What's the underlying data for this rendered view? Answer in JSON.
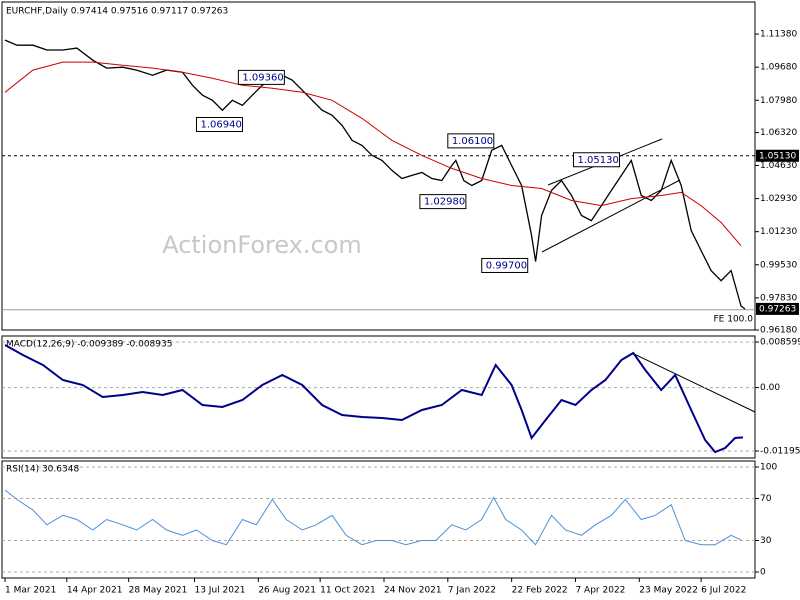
{
  "chart_data": [
    {
      "type": "line",
      "title": "EURCHF,Daily  0.97414 0.97516 0.97117 0.97263",
      "watermark": "ActionForex.com",
      "xlim": [
        -1.5,
        376
      ],
      "ylim": [
        0.9618,
        1.1313
      ],
      "yticks": [
        {
          "value": 1.1138,
          "label": "1.11380"
        },
        {
          "value": 1.0968,
          "label": "1.09680"
        },
        {
          "value": 1.0798,
          "label": "1.07980"
        },
        {
          "value": 1.0632,
          "label": "1.06320"
        },
        {
          "value": 1.0463,
          "label": "1.04630"
        },
        {
          "value": 1.0293,
          "label": "1.02930"
        },
        {
          "value": 1.0123,
          "label": "1.01230"
        },
        {
          "value": 0.9953,
          "label": "0.99530"
        },
        {
          "value": 0.9783,
          "label": "0.97830"
        },
        {
          "value": 0.9618,
          "label": "0.96180"
        }
      ],
      "grid": false,
      "series": [
        {
          "color": "#000000",
          "x": [
            0,
            6,
            14,
            21,
            29,
            36,
            44,
            51,
            59,
            66,
            74,
            81,
            89,
            94,
            99,
            104,
            109,
            114,
            119,
            124,
            129,
            134,
            139,
            144,
            149,
            154,
            159,
            164,
            169,
            174,
            179,
            184,
            189,
            194,
            199,
            204,
            209,
            214,
            219,
            224,
            226,
            230,
            234,
            239,
            244,
            249,
            254,
            259,
            264,
            266,
            269,
            274,
            279,
            284,
            289,
            294,
            299,
            304,
            309,
            314,
            319,
            324,
            329,
            334,
            339,
            344,
            349,
            354,
            359,
            364,
            369,
            371
          ],
          "values": [
            1.1107,
            1.1081,
            1.1081,
            1.1056,
            1.1056,
            1.1066,
            1.1004,
            1.0963,
            1.0968,
            1.0953,
            1.0927,
            1.0953,
            1.0942,
            1.0875,
            1.0824,
            1.0798,
            1.0747,
            1.0798,
            1.0772,
            1.0824,
            1.0875,
            1.0911,
            1.0927,
            1.0901,
            1.085,
            1.0798,
            1.0747,
            1.0721,
            1.0669,
            1.0592,
            1.0566,
            1.0515,
            1.0489,
            1.0438,
            1.0396,
            1.0412,
            1.0427,
            1.0396,
            1.0386,
            1.0463,
            1.0489,
            1.0386,
            1.036,
            1.0386,
            1.0541,
            1.0566,
            1.0463,
            1.036,
            1.0103,
            0.997,
            1.0206,
            1.0335,
            1.0386,
            1.0309,
            1.0206,
            1.018,
            1.0257,
            1.0335,
            1.0412,
            1.0489,
            1.0309,
            1.0283,
            1.0335,
            1.0489,
            1.036,
            1.0129,
            1.0026,
            0.9923,
            0.9871,
            0.9923,
            0.9742,
            0.9726
          ]
        },
        {
          "color": "#cc0000",
          "x": [
            0,
            14,
            29,
            44,
            59,
            74,
            89,
            104,
            119,
            134,
            149,
            164,
            179,
            194,
            209,
            224,
            239,
            254,
            269,
            284,
            299,
            314,
            329,
            339,
            349,
            359,
            369
          ],
          "values": [
            1.0839,
            1.0953,
            1.0994,
            1.0994,
            1.0978,
            1.0963,
            1.0942,
            1.0911,
            1.0875,
            1.086,
            1.0839,
            1.0798,
            1.0705,
            1.0592,
            1.0515,
            1.0448,
            1.0396,
            1.036,
            1.0345,
            1.0283,
            1.0257,
            1.0293,
            1.0309,
            1.0325,
            1.0257,
            1.017,
            1.0051
          ]
        }
      ],
      "annotations": [
        {
          "label": "1.09360",
          "value": 1.0936,
          "x": 117
        },
        {
          "label": "1.06940",
          "value": 1.0694,
          "x": 96
        },
        {
          "label": "1.06100",
          "value": 1.061,
          "x": 222
        },
        {
          "label": "1.05130",
          "value": 1.0513,
          "x": 285
        },
        {
          "label": "1.02980",
          "value": 1.0298,
          "x": 208
        },
        {
          "label": "0.99700",
          "value": 0.997,
          "x": 239
        }
      ],
      "level": {
        "value": 1.0513,
        "label": "1.05130"
      },
      "last_price": {
        "value": 0.97263,
        "label": "0.97263"
      },
      "fe_level": {
        "value": 0.9722,
        "label": "FE 100.0"
      }
    },
    {
      "type": "line",
      "title": "MACD(12,26,9) -0.009389 -0.008935",
      "xlim": [
        -1.5,
        376
      ],
      "ylim": [
        -0.013278,
        0.00973
      ],
      "yticks": [
        0.008599,
        {
          "value": 0,
          "label": "0.00"
        },
        -0.011958
      ],
      "grid": true,
      "series": [
        {
          "color": "#00008b",
          "x": [
            0,
            9,
            19,
            29,
            39,
            49,
            59,
            69,
            79,
            89,
            99,
            109,
            119,
            129,
            139,
            149,
            159,
            169,
            179,
            189,
            199,
            209,
            219,
            229,
            239,
            246,
            254,
            259,
            264,
            271,
            279,
            286,
            294,
            301,
            309,
            315,
            321,
            329,
            336,
            344,
            351,
            356,
            361,
            366,
            370
          ],
          "values": [
            0.00803,
            0.00615,
            0.00427,
            0.00143,
            0.00049,
            -0.00177,
            -0.0014,
            -0.00083,
            -0.0014,
            -0.00045,
            -0.00328,
            -0.00366,
            -0.00234,
            0.00049,
            0.00238,
            0.00049,
            -0.00328,
            -0.00517,
            -0.00554,
            -0.00573,
            -0.00611,
            -0.00422,
            -0.00328,
            -0.00045,
            -0.0014,
            0.00427,
            0.00049,
            -0.00422,
            -0.0095,
            -0.00611,
            -0.00234,
            -0.00328,
            -0.00045,
            0.00143,
            0.0052,
            0.00652,
            0.00332,
            -0.00045,
            0.00238,
            -0.00422,
            -0.00988,
            -0.01214,
            -0.01139,
            -0.0095,
            -0.00939
          ]
        }
      ]
    },
    {
      "type": "line",
      "title": "RSI(14) 30.6348",
      "xlim": [
        -1.5,
        376
      ],
      "ylim": [
        -5.7,
        105.7
      ],
      "yticks": [
        100,
        70,
        30,
        0
      ],
      "grid": true,
      "xticks": [
        {
          "value": 0,
          "label": "1 Mar 2021"
        },
        {
          "value": 31,
          "label": "14 Apr 2021"
        },
        {
          "value": 62,
          "label": "28 May 2021"
        },
        {
          "value": 95,
          "label": "13 Jul 2021"
        },
        {
          "value": 127,
          "label": "26 Aug 2021"
        },
        {
          "value": 158,
          "label": "11 Oct 2021"
        },
        {
          "value": 190,
          "label": "24 Nov 2021"
        },
        {
          "value": 222,
          "label": "7 Jan 2022"
        },
        {
          "value": 254,
          "label": "22 Feb 2022"
        },
        {
          "value": 286,
          "label": "7 Apr 2022"
        },
        {
          "value": 318,
          "label": "23 May 2022"
        },
        {
          "value": 349,
          "label": "6 Jul 2022"
        }
      ],
      "series": [
        {
          "color": "#4a90d9",
          "x": [
            0,
            6,
            14,
            21,
            29,
            36,
            44,
            51,
            59,
            66,
            74,
            81,
            89,
            96,
            104,
            111,
            119,
            126,
            134,
            141,
            149,
            156,
            164,
            171,
            179,
            186,
            194,
            201,
            209,
            216,
            224,
            231,
            239,
            245,
            251,
            259,
            266,
            274,
            281,
            289,
            296,
            304,
            311,
            319,
            326,
            334,
            341,
            349,
            356,
            364,
            369
          ],
          "values": [
            78,
            69,
            59,
            45,
            54,
            50,
            40,
            50,
            45,
            40,
            50,
            40,
            35,
            40,
            30,
            26,
            50,
            45,
            69,
            50,
            40,
            45,
            54,
            35,
            26,
            30,
            30,
            26,
            30,
            30,
            45,
            40,
            50,
            71,
            50,
            40,
            26,
            54,
            40,
            35,
            45,
            54,
            69,
            50,
            54,
            64,
            30,
            26,
            26,
            35,
            30.6
          ]
        }
      ]
    }
  ]
}
